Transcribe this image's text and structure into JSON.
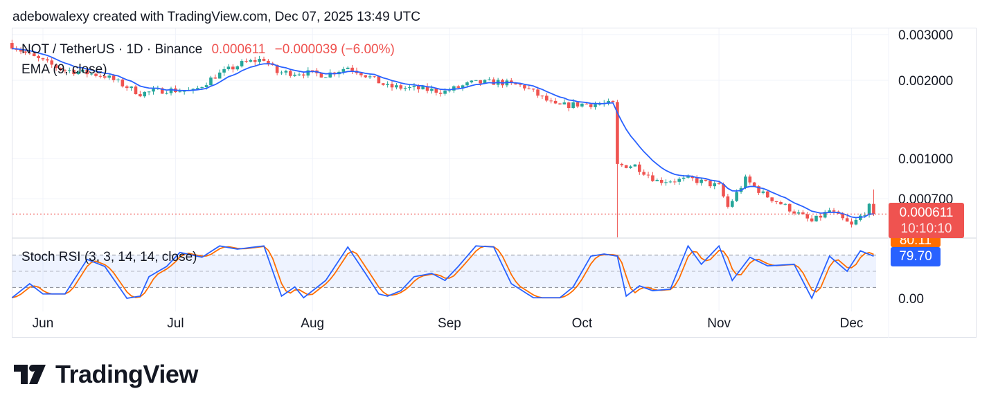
{
  "header": {
    "text": "adebowalexy created with TradingView.com, Dec 07, 2025 13:49 UTC"
  },
  "legend": {
    "symbol": "NOT / TetherUS · 1D · Binance",
    "price": "0.000611",
    "change": "−0.000039 (−6.00%)",
    "ema": "EMA (9, close)",
    "stoch": "Stoch RSI (3, 3, 14, 14, close)"
  },
  "price_tag": {
    "price": "0.000611",
    "countdown": "10:10:10"
  },
  "stoch_tags": {
    "d": "80.11",
    "k": "79.70"
  },
  "logo": {
    "text": "TradingView"
  },
  "colors": {
    "up": "#26a69a",
    "down": "#ef5350",
    "ema": "#2962ff",
    "k": "#2962ff",
    "d": "#ff6d00"
  },
  "chart_data": {
    "type": "candlestick",
    "title": "NOT / TetherUS · 1D · Binance",
    "scale": "log",
    "y_ticks": [
      {
        "v": 0.003,
        "label": "0.003000"
      },
      {
        "v": 0.002,
        "label": "0.002000"
      },
      {
        "v": 0.001,
        "label": "0.001000"
      },
      {
        "v": 0.0007,
        "label": "0.000700"
      }
    ],
    "stoch_ticks": [
      {
        "v": 0,
        "label": "0.00"
      }
    ],
    "x_ticks": [
      {
        "d": 0,
        "label": "Jun"
      },
      {
        "d": 30,
        "label": "Jul"
      },
      {
        "d": 61,
        "label": "Aug"
      },
      {
        "d": 92,
        "label": "Sep"
      },
      {
        "d": 122,
        "label": "Oct"
      },
      {
        "d": 153,
        "label": "Nov"
      },
      {
        "d": 183,
        "label": "Dec"
      }
    ],
    "x_unit": "days since Jun 1, 2025",
    "close_keyframes": [
      [
        -7,
        0.00273
      ],
      [
        -3,
        0.00249
      ],
      [
        4,
        0.00221
      ],
      [
        14,
        0.00208
      ],
      [
        22,
        0.00178
      ],
      [
        28,
        0.00184
      ],
      [
        34,
        0.00181
      ],
      [
        39,
        0.00208
      ],
      [
        45,
        0.00232
      ],
      [
        50,
        0.00242
      ],
      [
        53,
        0.00214
      ],
      [
        59,
        0.00214
      ],
      [
        64,
        0.0021
      ],
      [
        69,
        0.00225
      ],
      [
        72,
        0.00214
      ],
      [
        78,
        0.00189
      ],
      [
        84,
        0.00186
      ],
      [
        91,
        0.00181
      ],
      [
        97,
        0.00195
      ],
      [
        103,
        0.00197
      ],
      [
        109,
        0.00189
      ],
      [
        116,
        0.00159
      ],
      [
        122,
        0.00162
      ],
      [
        129,
        0.00162
      ],
      [
        130,
        0.00094
      ],
      [
        134,
        0.00094
      ],
      [
        139,
        0.00082
      ],
      [
        147,
        0.00083
      ],
      [
        153,
        0.00078
      ],
      [
        155,
        0.00065
      ],
      [
        159,
        0.00083
      ],
      [
        163,
        0.00073
      ],
      [
        167,
        0.00067
      ],
      [
        174,
        0.00057
      ],
      [
        178,
        0.00063
      ],
      [
        183,
        0.00055
      ],
      [
        187,
        0.00065
      ],
      [
        188,
        0.000611
      ]
    ],
    "stoch_k_keyframes": [
      [
        -7,
        1
      ],
      [
        -3,
        27
      ],
      [
        0,
        8
      ],
      [
        5,
        8
      ],
      [
        10,
        72
      ],
      [
        14,
        59
      ],
      [
        19,
        0
      ],
      [
        22,
        4
      ],
      [
        24,
        40
      ],
      [
        28,
        59
      ],
      [
        31,
        85
      ],
      [
        36,
        76
      ],
      [
        40,
        97
      ],
      [
        44,
        91
      ],
      [
        50,
        97
      ],
      [
        54,
        4
      ],
      [
        57,
        21
      ],
      [
        59,
        1
      ],
      [
        64,
        33
      ],
      [
        69,
        95
      ],
      [
        73,
        46
      ],
      [
        76,
        8
      ],
      [
        78,
        4
      ],
      [
        81,
        14
      ],
      [
        84,
        40
      ],
      [
        88,
        46
      ],
      [
        91,
        33
      ],
      [
        94,
        59
      ],
      [
        98,
        97
      ],
      [
        102,
        95
      ],
      [
        106,
        27
      ],
      [
        111,
        1
      ],
      [
        117,
        1
      ],
      [
        120,
        21
      ],
      [
        124,
        78
      ],
      [
        127,
        82
      ],
      [
        130,
        78
      ],
      [
        132,
        4
      ],
      [
        135,
        23
      ],
      [
        138,
        14
      ],
      [
        142,
        17
      ],
      [
        146,
        97
      ],
      [
        149,
        63
      ],
      [
        153,
        97
      ],
      [
        156,
        33
      ],
      [
        160,
        76
      ],
      [
        164,
        60
      ],
      [
        170,
        63
      ],
      [
        174,
        0
      ],
      [
        178,
        78
      ],
      [
        182,
        50
      ],
      [
        185,
        88
      ],
      [
        188,
        78
      ]
    ]
  }
}
